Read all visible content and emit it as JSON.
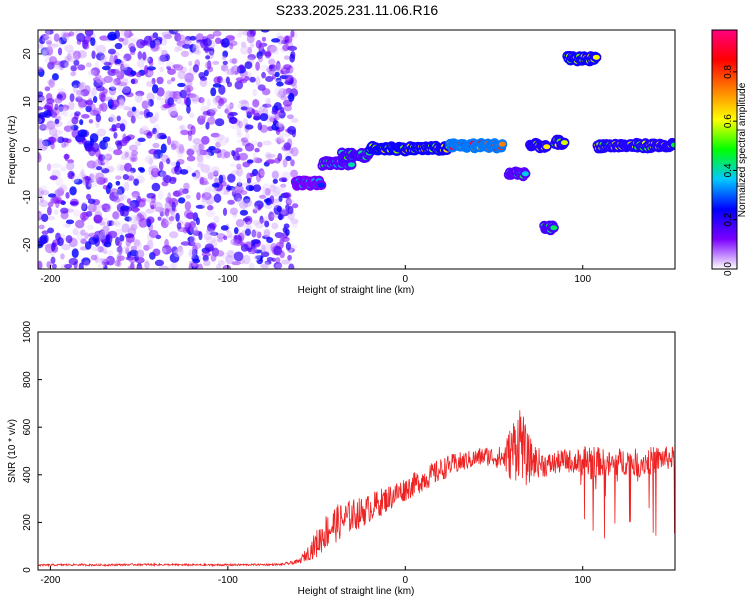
{
  "title": "S233.2025.231.11.06.R16",
  "chart_data": [
    {
      "type": "heatmap",
      "xlabel": "Height of straight line (km)",
      "ylabel": "Frequency (Hz)",
      "xlim": [
        -207,
        152
      ],
      "ylim": [
        -25,
        25
      ],
      "x_ticks": [
        -200,
        -100,
        0,
        100
      ],
      "y_ticks": [
        -20,
        -10,
        0,
        10,
        20
      ],
      "colorbar": {
        "label": "Normalized spectral amplitude",
        "range": [
          0,
          0.97
        ],
        "ticks": [
          0.0,
          0.2,
          0.4,
          0.6,
          0.8
        ],
        "colormap": [
          "#ffffff",
          "#7a00ff",
          "#0000ff",
          "#00c8ff",
          "#00ff00",
          "#ffff00",
          "#ff8000",
          "#ff0000",
          "#ff0080"
        ]
      },
      "noise_region": {
        "x_range": [
          -207,
          -62
        ],
        "y_range": [
          -25,
          25
        ],
        "amplitude_range": [
          0.02,
          0.25
        ]
      },
      "features": [
        {
          "x_range": [
            -62,
            -47
          ],
          "y_center": -7,
          "amplitude": 0.35
        },
        {
          "x_range": [
            -47,
            -30
          ],
          "y_center": -3,
          "amplitude": 0.45
        },
        {
          "x_range": [
            -36,
            -20
          ],
          "y_center": -1.2,
          "amplitude": 0.5
        },
        {
          "x_range": [
            -20,
            25
          ],
          "y_center": 0.2,
          "amplitude": 0.65
        },
        {
          "x_range": [
            25,
            55
          ],
          "y_center": 0.8,
          "amplitude": 0.9
        },
        {
          "x_range": [
            58,
            68
          ],
          "y_center": -5,
          "amplitude": 0.45
        },
        {
          "x_range": [
            70,
            80
          ],
          "y_center": 0.8,
          "amplitude": 0.6
        },
        {
          "x_range": [
            78,
            84
          ],
          "y_center": -16.5,
          "amplitude": 0.5
        },
        {
          "x_range": [
            84,
            90
          ],
          "y_center": 1.5,
          "amplitude": 0.6
        },
        {
          "x_range": [
            91,
            108
          ],
          "y_center": 19,
          "amplitude": 0.65
        },
        {
          "x_range": [
            108,
            152
          ],
          "y_center": 0.8,
          "amplitude": 0.6
        }
      ]
    },
    {
      "type": "line",
      "xlabel": "Height of straight line (km)",
      "ylabel": "SNR (10 * v/v)",
      "xlim": [
        -207,
        152
      ],
      "ylim": [
        0,
        1000
      ],
      "x_ticks": [
        -200,
        -100,
        0,
        100
      ],
      "y_ticks": [
        0,
        200,
        400,
        600,
        800,
        1000
      ],
      "series": [
        {
          "color": "#ee2222",
          "x": [
            -207,
            -190,
            -170,
            -150,
            -130,
            -110,
            -90,
            -70,
            -60,
            -55,
            -50,
            -45,
            -40,
            -35,
            -30,
            -25,
            -20,
            -15,
            -10,
            -5,
            0,
            5,
            10,
            15,
            20,
            25,
            30,
            35,
            40,
            45,
            50,
            55,
            58,
            62,
            65,
            68,
            72,
            76,
            80,
            85,
            90,
            95,
            100,
            103,
            106,
            110,
            115,
            120,
            125,
            130,
            135,
            140,
            145,
            152
          ],
          "y": [
            20,
            22,
            21,
            23,
            22,
            21,
            22,
            23,
            35,
            70,
            110,
            160,
            190,
            210,
            230,
            240,
            260,
            280,
            300,
            320,
            340,
            360,
            380,
            400,
            420,
            440,
            450,
            460,
            470,
            480,
            475,
            470,
            480,
            520,
            560,
            470,
            460,
            450,
            440,
            450,
            460,
            455,
            450,
            460,
            450,
            455,
            440,
            450,
            460,
            450,
            455,
            460,
            470,
            470
          ],
          "noise_amplitude": [
            8,
            8,
            8,
            8,
            8,
            8,
            8,
            8,
            20,
            60,
            120,
            150,
            160,
            150,
            140,
            130,
            120,
            120,
            110,
            110,
            100,
            100,
            100,
            100,
            100,
            90,
            90,
            80,
            80,
            80,
            90,
            100,
            200,
            300,
            320,
            250,
            150,
            120,
            100,
            100,
            100,
            100,
            120,
            200,
            150,
            120,
            120,
            120,
            120,
            120,
            120,
            120,
            100,
            100
          ]
        }
      ]
    }
  ]
}
